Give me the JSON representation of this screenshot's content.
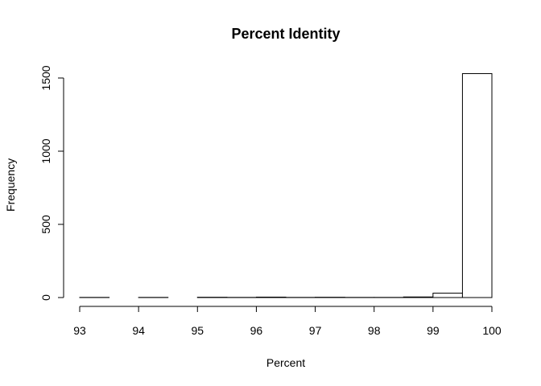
{
  "chart_data": {
    "type": "bar",
    "title": "Percent Identity",
    "xlabel": "Percent",
    "ylabel": "Frequency",
    "xlim": [
      93,
      100
    ],
    "ylim": [
      0,
      1530
    ],
    "x_ticks": [
      93,
      94,
      95,
      96,
      97,
      98,
      99,
      100
    ],
    "y_ticks": [
      0,
      500,
      1000,
      1500
    ],
    "bins": [
      {
        "start": 93.0,
        "end": 93.5,
        "count": 1
      },
      {
        "start": 93.5,
        "end": 94.0,
        "count": 0
      },
      {
        "start": 94.0,
        "end": 94.5,
        "count": 1
      },
      {
        "start": 94.5,
        "end": 95.0,
        "count": 0
      },
      {
        "start": 95.0,
        "end": 95.5,
        "count": 2
      },
      {
        "start": 95.5,
        "end": 96.0,
        "count": 1
      },
      {
        "start": 96.0,
        "end": 96.5,
        "count": 3
      },
      {
        "start": 96.5,
        "end": 97.0,
        "count": 1
      },
      {
        "start": 97.0,
        "end": 97.5,
        "count": 2
      },
      {
        "start": 97.5,
        "end": 98.0,
        "count": 1
      },
      {
        "start": 98.0,
        "end": 98.5,
        "count": 1
      },
      {
        "start": 98.5,
        "end": 99.0,
        "count": 4
      },
      {
        "start": 99.0,
        "end": 99.5,
        "count": 30
      },
      {
        "start": 99.5,
        "end": 100.0,
        "count": 1530
      }
    ],
    "grid": false,
    "legend": "none"
  }
}
